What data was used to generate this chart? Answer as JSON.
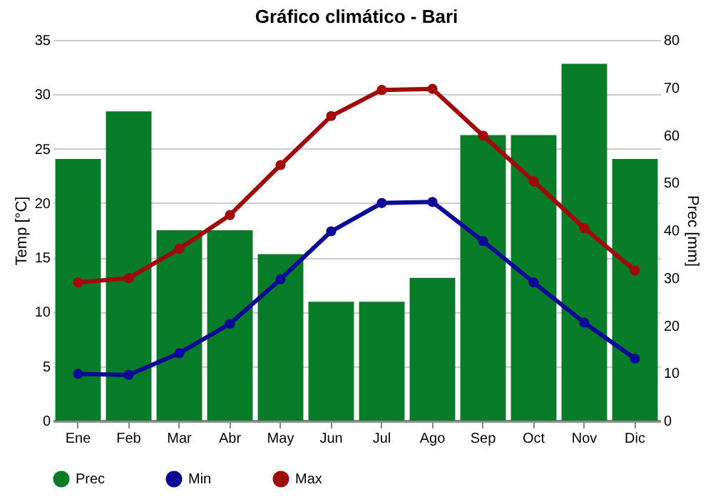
{
  "chart_data": {
    "type": "line",
    "title": "Gráfico climático - Bari",
    "ylabel": "Temp [°C]",
    "y2label": "Prec [mm]",
    "categories": [
      "Ene",
      "Feb",
      "Mar",
      "Abr",
      "May",
      "Jun",
      "Jul",
      "Ago",
      "Sep",
      "Oct",
      "Nov",
      "Dic"
    ],
    "series": [
      {
        "name": "Prec",
        "type": "bar",
        "axis": "y2",
        "color": "#087c28",
        "values": [
          55,
          65,
          40,
          40,
          35,
          25,
          25,
          30,
          60,
          60,
          75,
          55
        ]
      },
      {
        "name": "Min",
        "color": "#0a0a96",
        "values": [
          4.3,
          4.2,
          6.2,
          8.9,
          13,
          17.4,
          20,
          20.1,
          16.5,
          12.7,
          9,
          5.7
        ]
      },
      {
        "name": "Max",
        "color": "#a00a0a",
        "values": [
          12.7,
          13.1,
          15.8,
          18.9,
          23.5,
          28,
          30.4,
          30.5,
          26.2,
          22,
          17.7,
          13.8
        ]
      }
    ],
    "ylim": [
      0,
      35
    ],
    "yticks": [
      0,
      5,
      10,
      15,
      20,
      25,
      30,
      35
    ],
    "y2lim": [
      0,
      80
    ],
    "y2ticks": [
      0,
      10,
      20,
      30,
      40,
      50,
      60,
      70,
      80
    ],
    "grid": "y",
    "legend": "bottom",
    "marker": "circle",
    "line_style": "solid"
  }
}
